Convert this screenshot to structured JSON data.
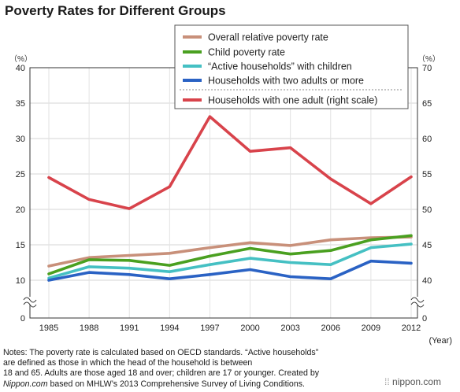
{
  "title": "Poverty Rates for Different Groups",
  "brand": "nippon.com",
  "chart_data": {
    "type": "line",
    "title": "Poverty Rates for Different Groups",
    "categories": [
      "1985",
      "1988",
      "1991",
      "1994",
      "1997",
      "2000",
      "2003",
      "2006",
      "2009",
      "2012"
    ],
    "xlabel": "(Year)",
    "left_axis": {
      "unit": "（%）",
      "ticks": [
        0,
        10,
        15,
        20,
        25,
        30,
        35,
        40
      ],
      "ylim": [
        0,
        40
      ],
      "broken": true
    },
    "right_axis": {
      "unit": "（%）",
      "ticks": [
        0,
        40,
        45,
        50,
        55,
        60,
        65,
        70
      ],
      "ylim": [
        0,
        70
      ],
      "broken": true
    },
    "grid": true,
    "legend_position": "top-right",
    "series": [
      {
        "name": "Overall relative poverty rate",
        "color": "#c8907a",
        "axis": "left",
        "values": [
          12.0,
          13.2,
          13.5,
          13.8,
          14.6,
          15.3,
          14.9,
          15.7,
          16.0,
          16.1
        ]
      },
      {
        "name": "Child poverty rate",
        "color": "#4aa020",
        "axis": "left",
        "values": [
          10.9,
          12.9,
          12.8,
          12.1,
          13.4,
          14.5,
          13.7,
          14.2,
          15.7,
          16.3
        ]
      },
      {
        "name": "“Active households” with children",
        "color": "#45c0c3",
        "axis": "left",
        "values": [
          10.3,
          11.9,
          11.7,
          11.2,
          12.2,
          13.1,
          12.5,
          12.2,
          14.6,
          15.1
        ]
      },
      {
        "name": "Households with two adults or more",
        "color": "#2a62c4",
        "axis": "left",
        "values": [
          9.6,
          11.1,
          10.8,
          10.2,
          10.8,
          11.5,
          10.5,
          10.2,
          12.7,
          12.4
        ]
      },
      {
        "name": "Households with one adult (right scale)",
        "color": "#d8434b",
        "axis": "right",
        "values": [
          54.5,
          51.4,
          50.1,
          53.2,
          63.1,
          58.2,
          58.7,
          54.3,
          50.8,
          54.6
        ]
      }
    ]
  },
  "notes": {
    "line1": "Notes: The poverty rate is calculated based on OECD standards. “Active households”",
    "line2": "are defined as those in which the head of the household is between",
    "line3": "18 and 65. Adults are those aged 18 and over; children are 17 or younger. Created by",
    "line4_em": "Nippon.com",
    "line4_rest": " based on MHLW’s 2013 Comprehensive Survey of Living Conditions."
  }
}
